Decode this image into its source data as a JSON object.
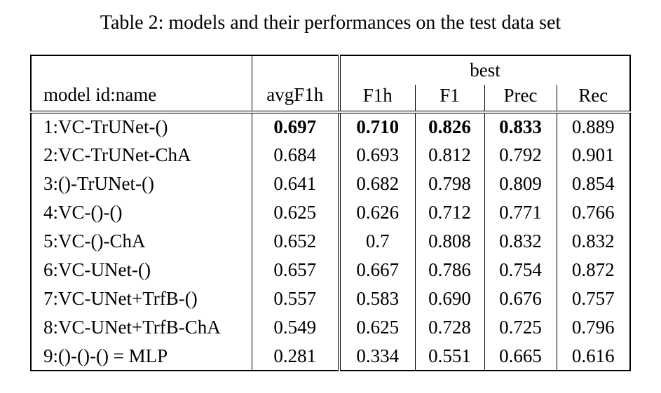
{
  "caption": "Table 2: models and their performances on the test data set",
  "table": {
    "header": {
      "model_col": "model id:name",
      "avg_col": "avgF1h",
      "group": "best",
      "sub_cols": [
        "F1h",
        "F1",
        "Prec",
        "Rec"
      ]
    },
    "rows": [
      {
        "model": "1:VC-TrUNet-()",
        "values": [
          "0.697",
          "0.710",
          "0.826",
          "0.833",
          "0.889"
        ],
        "bold": [
          true,
          true,
          true,
          true,
          false
        ]
      },
      {
        "model": "2:VC-TrUNet-ChA",
        "values": [
          "0.684",
          "0.693",
          "0.812",
          "0.792",
          "0.901"
        ],
        "bold": [
          false,
          false,
          false,
          false,
          false
        ]
      },
      {
        "model": "3:()-TrUNet-()",
        "values": [
          "0.641",
          "0.682",
          "0.798",
          "0.809",
          "0.854"
        ],
        "bold": [
          false,
          false,
          false,
          false,
          false
        ]
      },
      {
        "model": "4:VC-()-()",
        "values": [
          "0.625",
          "0.626",
          "0.712",
          "0.771",
          "0.766"
        ],
        "bold": [
          false,
          false,
          false,
          false,
          false
        ]
      },
      {
        "model": "5:VC-()-ChA",
        "values": [
          "0.652",
          "0.7",
          "0.808",
          "0.832",
          "0.832"
        ],
        "bold": [
          false,
          false,
          false,
          false,
          false
        ]
      },
      {
        "model": "6:VC-UNet-()",
        "values": [
          "0.657",
          "0.667",
          "0.786",
          "0.754",
          "0.872"
        ],
        "bold": [
          false,
          false,
          false,
          false,
          false
        ]
      },
      {
        "model": "7:VC-UNet+TrfB-()",
        "values": [
          "0.557",
          "0.583",
          "0.690",
          "0.676",
          "0.757"
        ],
        "bold": [
          false,
          false,
          false,
          false,
          false
        ]
      },
      {
        "model": "8:VC-UNet+TrfB-ChA",
        "values": [
          "0.549",
          "0.625",
          "0.728",
          "0.725",
          "0.796"
        ],
        "bold": [
          false,
          false,
          false,
          false,
          false
        ]
      },
      {
        "model": "9:()-()-() = MLP",
        "values": [
          "0.281",
          "0.334",
          "0.551",
          "0.665",
          "0.616"
        ],
        "bold": [
          false,
          false,
          false,
          false,
          false
        ]
      }
    ]
  },
  "colors": {
    "text": "#000000",
    "background": "#ffffff",
    "rule": "#000000"
  }
}
